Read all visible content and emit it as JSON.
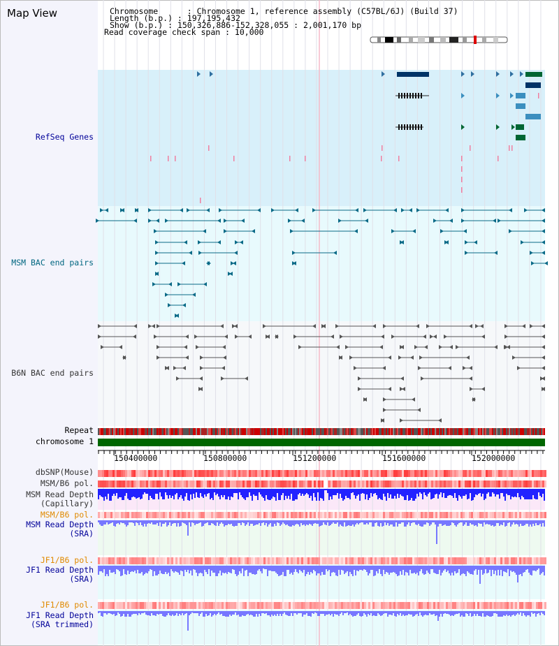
{
  "app": {
    "title": "Map View"
  },
  "header": {
    "chromosome": "Chromosome      : Chromosome 1, reference assembly (C57BL/6J) (Build 37)",
    "length": "Length (b.p.) : 197,195,432",
    "show": "Show (b.p.) : 150,326,886-152,328,055 : 2,001,170 bp",
    "coverage": "Read coverage check span : 10,000"
  },
  "tracks": {
    "refseq": "RefSeq Genes",
    "msm_bac": "MSM BAC end pairs",
    "b6n_bac": "B6N BAC end pairs",
    "repeat": "Repeat",
    "chromosome": "chromosome 1",
    "dbsnp": "dbSNP(Mouse)",
    "msm_pol": "MSM/B6 pol.",
    "msm_depth_cap_1": "MSM Read Depth",
    "msm_depth_cap_2": "(Capillary)",
    "msm_pol_2": "MSM/B6 pol.",
    "msm_depth_sra_1": "MSM Read Depth",
    "msm_depth_sra_2": "(SRA)",
    "jf1_pol": "JF1/B6 pol.",
    "jf1_depth_1": "JF1 Read Depth",
    "jf1_depth_2": "(SRA)",
    "jf1_pol_2": "JF1/B6 pol.",
    "jf1_trim_1": "JF1 Read Depth",
    "jf1_trim_2": "(SRA trimmed)"
  },
  "axis": {
    "ticks": [
      "150400000",
      "150800000",
      "151200000",
      "151600000",
      "152000000"
    ]
  },
  "colors": {
    "refseq_bg": "#d8f0fa",
    "msm_bac_bg": "#e8fafd",
    "b6n_bg": "#f6f8fa",
    "gene_dark": "#003366",
    "gene_green": "#006633",
    "gene_light": "#3b8fbf",
    "msm_line": "#0a6a87",
    "b6n_line": "#555555",
    "chromosome_bar": "#006600",
    "label_blue": "#000099",
    "label_teal": "#006680",
    "label_orange": "#e08a00",
    "label_gray": "#333333",
    "depth_blue": "#2222ff",
    "depth_light": "#7777ff"
  }
}
